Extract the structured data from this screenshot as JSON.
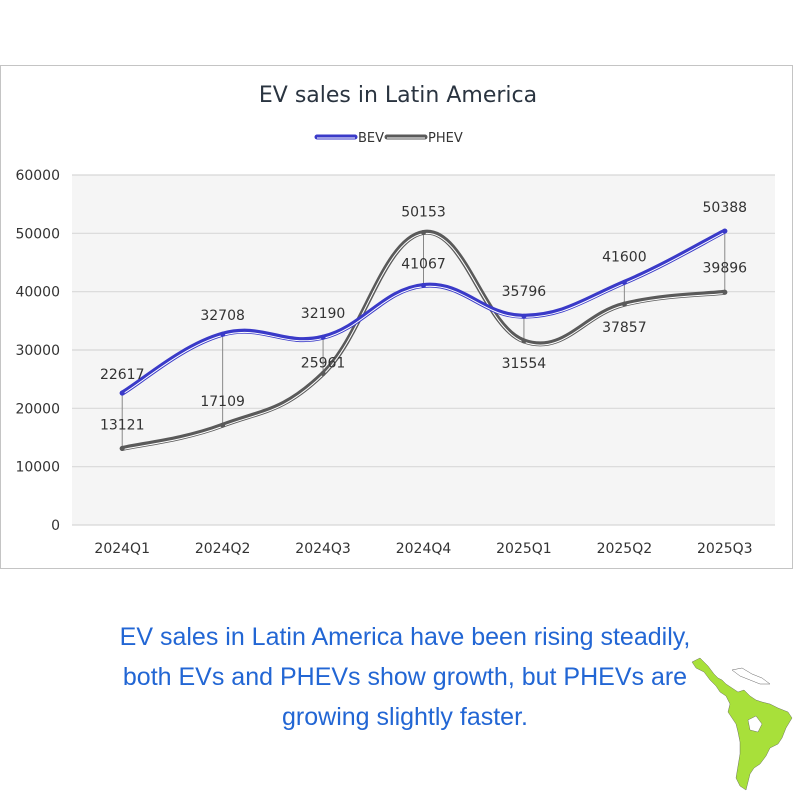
{
  "chart_data": {
    "type": "line",
    "title": "EV sales in Latin America",
    "xlabel": "",
    "ylabel": "",
    "categories": [
      "2024Q1",
      "2024Q2",
      "2024Q3",
      "2024Q4",
      "2025Q1",
      "2025Q2",
      "2025Q3"
    ],
    "series": [
      {
        "name": "BEV",
        "color": "#3a3ac8",
        "values": [
          22617,
          32708,
          32190,
          41067,
          35796,
          41600,
          50388
        ]
      },
      {
        "name": "PHEV",
        "color": "#5a5a5a",
        "values": [
          13121,
          17109,
          25961,
          50153,
          31554,
          37857,
          39896
        ]
      }
    ],
    "ylim": [
      0,
      60000
    ],
    "yticks": [
      0,
      10000,
      20000,
      30000,
      40000,
      50000,
      60000
    ],
    "grid": true,
    "legend": "top-center",
    "smooth": true,
    "drop_lines": true,
    "data_labels": true
  },
  "caption": {
    "lines": [
      "EV sales in Latin America have been rising steadily,",
      "both EVs and PHEVs show growth, but PHEVs are",
      "growing slightly faster."
    ]
  },
  "decor": {
    "map_icon": "latin-america-map-icon",
    "map_color": "#a8e03a"
  }
}
